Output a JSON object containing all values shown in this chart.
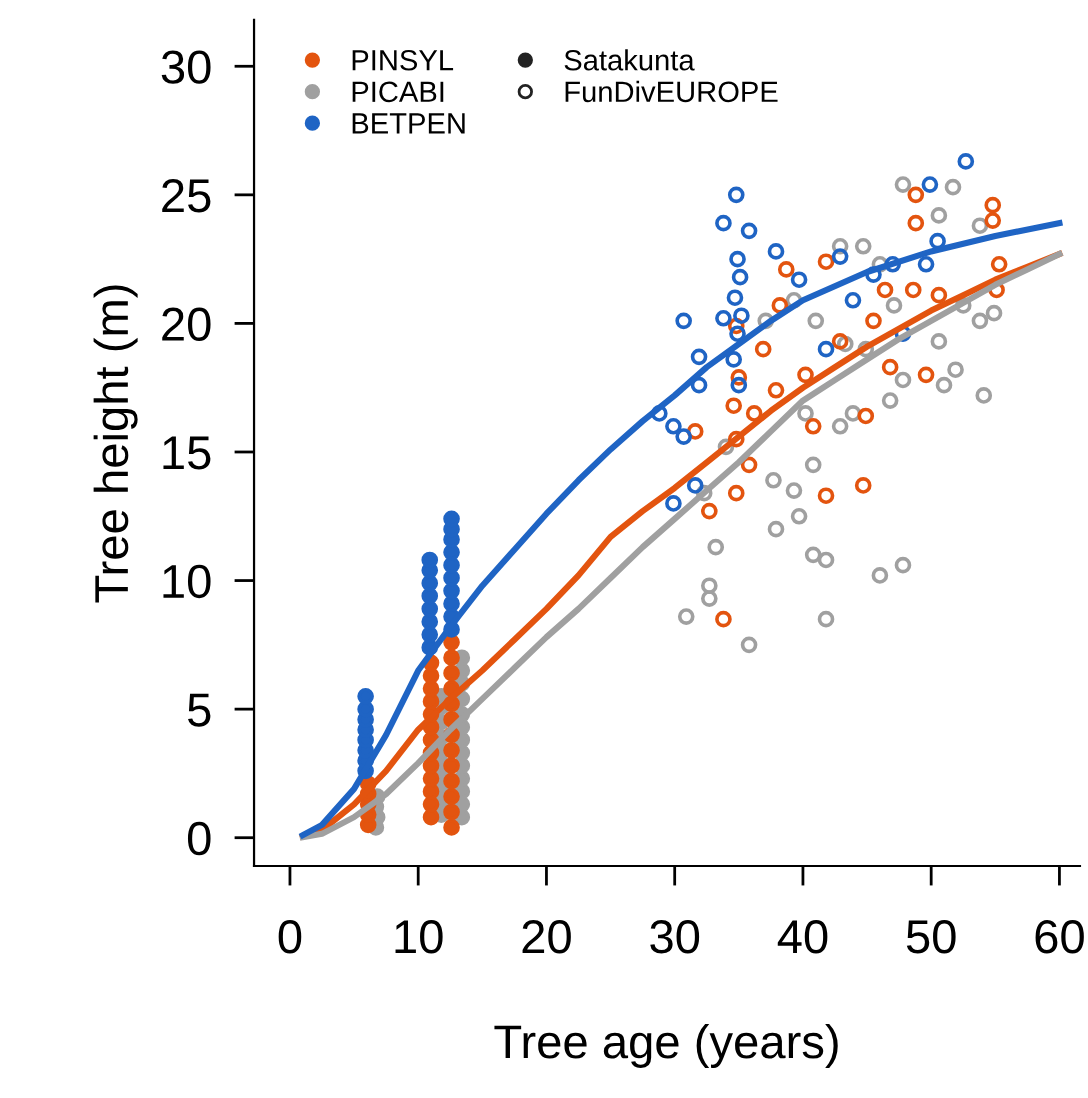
{
  "chart_data": {
    "type": "scatter",
    "xlabel": "Tree age (years)",
    "ylabel": "Tree height (m)",
    "xlim": [
      -2.8,
      61.6
    ],
    "ylim": [
      -1.1,
      31.8
    ],
    "xticks": [
      0,
      10,
      20,
      30,
      40,
      50,
      60
    ],
    "yticks": [
      0,
      5,
      10,
      15,
      20,
      25,
      30
    ],
    "grid": false,
    "legend": "top left",
    "annotations": [
      "Satakunta",
      "FunDivEUROPE"
    ],
    "series": [
      {
        "name": "PINSYL",
        "type": "line",
        "color": "#e3540f",
        "x": [
          1,
          2.5,
          5,
          7.5,
          10,
          12.5,
          15,
          17.5,
          20,
          22.5,
          25,
          27.5,
          30,
          32.5,
          35,
          37.5,
          40,
          42.5,
          45,
          47.5,
          50,
          52.5,
          55,
          57.5,
          60
        ],
        "values": [
          0.05,
          0.3,
          1.3,
          2.6,
          4.2,
          5.4,
          6.5,
          7.7,
          8.9,
          10.2,
          11.7,
          12.7,
          13.6,
          14.6,
          15.6,
          16.6,
          17.5,
          18.3,
          19.1,
          19.8,
          20.5,
          21.1,
          21.7,
          22.2,
          22.7
        ]
      },
      {
        "name": "PICABI",
        "type": "line",
        "color": "#a0a0a0",
        "x": [
          1,
          2.5,
          5,
          7.5,
          10,
          12.5,
          15,
          17.5,
          20,
          22.5,
          25,
          27.5,
          30,
          32.5,
          35,
          37.5,
          40,
          42.5,
          45,
          47.5,
          50,
          52.5,
          55,
          57.5,
          60
        ],
        "values": [
          0.02,
          0.15,
          0.8,
          1.7,
          2.9,
          4.2,
          5.4,
          6.6,
          7.8,
          8.9,
          10.1,
          11.3,
          12.4,
          13.5,
          14.6,
          15.8,
          17.0,
          17.8,
          18.6,
          19.4,
          20.1,
          20.8,
          21.5,
          22.1,
          22.7
        ]
      },
      {
        "name": "BETPEN",
        "type": "line",
        "color": "#1f64c4",
        "x": [
          1,
          2.5,
          5,
          7.5,
          10,
          12.5,
          15,
          17.5,
          20,
          22.5,
          25,
          27.5,
          30,
          32.5,
          35,
          37.5,
          40,
          45,
          50,
          55,
          60
        ],
        "values": [
          0.1,
          0.5,
          1.9,
          4.0,
          6.5,
          8.2,
          9.8,
          11.2,
          12.6,
          13.9,
          15.1,
          16.2,
          17.2,
          18.3,
          19.2,
          20.1,
          20.9,
          22.0,
          22.8,
          23.4,
          23.9
        ]
      },
      {
        "color": "#222222",
        "x": [
          6.7,
          6.8,
          6.7,
          6.8,
          11.8,
          11.8,
          11.8,
          11.8,
          11.8,
          11.8,
          11.8,
          11.8,
          11.8,
          11.8,
          13.4,
          13.4,
          13.4,
          13.4,
          13.4,
          13.4,
          13.4,
          13.4,
          13.4,
          13.4,
          13.4,
          13.4,
          13.4,
          6.1,
          6.1,
          6.1,
          6.1,
          6.1,
          11.0,
          11.0,
          11.0,
          11.0,
          11.0,
          11.0,
          11.0,
          11.0,
          11.0,
          11.0,
          11.0,
          11.0,
          11.0,
          12.6,
          12.6,
          12.6,
          12.6,
          12.6,
          12.6,
          12.6,
          12.6,
          12.6,
          12.6,
          12.6,
          12.6,
          12.6,
          5.9,
          5.9,
          5.9,
          5.9,
          5.9,
          5.9,
          5.9,
          5.9,
          10.9,
          10.9,
          10.9,
          10.9,
          10.9,
          10.9,
          10.9,
          10.9,
          12.6,
          12.6,
          12.6,
          12.6,
          12.6,
          12.6,
          12.6,
          12.6,
          12.6,
          12.6
        ],
        "values": [
          0.4,
          0.8,
          1.2,
          1.6,
          0.9,
          1.4,
          1.9,
          2.4,
          2.9,
          3.4,
          3.9,
          4.5,
          5.1,
          5.5,
          0.8,
          1.3,
          1.8,
          2.3,
          2.8,
          3.3,
          3.8,
          4.3,
          4.8,
          5.4,
          6.0,
          6.5,
          7.0,
          0.5,
          0.9,
          1.3,
          1.7,
          2.1,
          0.8,
          1.3,
          1.8,
          2.3,
          2.8,
          3.3,
          3.8,
          4.3,
          4.8,
          5.3,
          5.8,
          6.3,
          6.8,
          0.4,
          1.0,
          1.6,
          2.2,
          2.8,
          3.4,
          4.0,
          4.6,
          5.2,
          5.8,
          6.4,
          7.0,
          7.6,
          2.6,
          3.0,
          3.4,
          3.8,
          4.2,
          4.6,
          5.0,
          5.5,
          7.4,
          7.9,
          8.4,
          8.9,
          9.4,
          9.9,
          10.4,
          10.8,
          8.1,
          8.6,
          9.1,
          9.6,
          10.1,
          10.6,
          11.1,
          11.6,
          12.0,
          12.4
        ],
        "colors": [
          "#a0a0a0",
          "#a0a0a0",
          "#a0a0a0",
          "#a0a0a0",
          "#a0a0a0",
          "#a0a0a0",
          "#a0a0a0",
          "#a0a0a0",
          "#a0a0a0",
          "#a0a0a0",
          "#a0a0a0",
          "#a0a0a0",
          "#a0a0a0",
          "#a0a0a0",
          "#a0a0a0",
          "#a0a0a0",
          "#a0a0a0",
          "#a0a0a0",
          "#a0a0a0",
          "#a0a0a0",
          "#a0a0a0",
          "#a0a0a0",
          "#a0a0a0",
          "#a0a0a0",
          "#a0a0a0",
          "#a0a0a0",
          "#a0a0a0",
          "#e3540f",
          "#e3540f",
          "#e3540f",
          "#e3540f",
          "#e3540f",
          "#e3540f",
          "#e3540f",
          "#e3540f",
          "#e3540f",
          "#e3540f",
          "#e3540f",
          "#e3540f",
          "#e3540f",
          "#e3540f",
          "#e3540f",
          "#e3540f",
          "#e3540f",
          "#e3540f",
          "#e3540f",
          "#e3540f",
          "#e3540f",
          "#e3540f",
          "#e3540f",
          "#e3540f",
          "#e3540f",
          "#e3540f",
          "#e3540f",
          "#e3540f",
          "#e3540f",
          "#e3540f",
          "#e3540f",
          "#1f64c4",
          "#1f64c4",
          "#1f64c4",
          "#1f64c4",
          "#1f64c4",
          "#1f64c4",
          "#1f64c4",
          "#1f64c4",
          "#1f64c4",
          "#1f64c4",
          "#1f64c4",
          "#1f64c4",
          "#1f64c4",
          "#1f64c4",
          "#1f64c4",
          "#1f64c4",
          "#1f64c4",
          "#1f64c4",
          "#1f64c4",
          "#1f64c4",
          "#1f64c4",
          "#1f64c4",
          "#1f64c4",
          "#1f64c4",
          "#1f64c4",
          "#1f64c4"
        ]
      },
      {
        "color": "#222222",
        "x": [
          47.8,
          51.7,
          50.6,
          53.8,
          44.7,
          42.9,
          46.0,
          53.8,
          54.9,
          50.6,
          51.9,
          51.0,
          54.1,
          47.8,
          46.8,
          30.9,
          35.8,
          41.8,
          32.7,
          32.7,
          33.2,
          40.8,
          41.8,
          46.0,
          47.8,
          37.9,
          39.7,
          37.7,
          39.3,
          40.8,
          42.9,
          34.0,
          32.3,
          40.2,
          43.9,
          41.0,
          39.3,
          37.1,
          43.3,
          44.9,
          47.1,
          52.5,
          48.8,
          54.8,
          54.8,
          48.8,
          41.8,
          38.7,
          33.8,
          32.7,
          31.6,
          34.8,
          35.8,
          41.8,
          44.7,
          34.8,
          49.6,
          44.9,
          46.8,
          48.6,
          55.3,
          55.1,
          50.6,
          36.9,
          37.9,
          36.2,
          40.2,
          40.8,
          42.9,
          45.5,
          34.8,
          34.6,
          35.0,
          38.2,
          46.4,
          34.8,
          33.8,
          35.8,
          34.9,
          35.1,
          34.7,
          35.2,
          34.9,
          30.7,
          33.8,
          28.8,
          29.9,
          29.9,
          31.6,
          31.9,
          31.9,
          34.6,
          35.0,
          52.7,
          49.9,
          49.6,
          50.5,
          47.0,
          45.5,
          43.9,
          39.7,
          37.9,
          42.9,
          41.8,
          47.8,
          30.7
        ],
        "values": [
          25.4,
          25.3,
          24.2,
          23.8,
          23.0,
          23.0,
          22.3,
          20.1,
          20.4,
          19.3,
          18.2,
          17.6,
          17.2,
          17.8,
          17.0,
          8.6,
          7.5,
          8.5,
          9.8,
          9.3,
          11.3,
          11.0,
          10.8,
          10.2,
          10.6,
          12.0,
          12.5,
          13.9,
          13.5,
          14.5,
          16.0,
          15.2,
          13.4,
          16.5,
          16.5,
          20.1,
          20.9,
          20.1,
          19.2,
          19.0,
          20.7,
          20.7,
          25.0,
          24.6,
          24.0,
          23.9,
          22.4,
          22.1,
          8.5,
          12.7,
          15.8,
          15.5,
          14.5,
          13.3,
          13.7,
          13.4,
          18.0,
          16.4,
          18.3,
          21.3,
          22.3,
          21.3,
          21.1,
          19.0,
          17.4,
          16.5,
          18.0,
          16.0,
          19.3,
          20.1,
          19.9,
          16.8,
          17.9,
          20.7,
          21.3,
          25.0,
          23.9,
          23.6,
          22.5,
          21.8,
          21.0,
          20.3,
          19.6,
          20.1,
          20.2,
          16.5,
          13.0,
          16.0,
          13.7,
          18.7,
          17.6,
          18.6,
          17.6,
          26.3,
          25.4,
          22.3,
          23.2,
          22.3,
          21.9,
          20.9,
          21.7,
          22.8,
          22.6,
          19.0,
          19.6,
          15.6
        ],
        "colors": [
          "#a0a0a0",
          "#a0a0a0",
          "#a0a0a0",
          "#a0a0a0",
          "#a0a0a0",
          "#a0a0a0",
          "#a0a0a0",
          "#a0a0a0",
          "#a0a0a0",
          "#a0a0a0",
          "#a0a0a0",
          "#a0a0a0",
          "#a0a0a0",
          "#a0a0a0",
          "#a0a0a0",
          "#a0a0a0",
          "#a0a0a0",
          "#a0a0a0",
          "#a0a0a0",
          "#a0a0a0",
          "#a0a0a0",
          "#a0a0a0",
          "#a0a0a0",
          "#a0a0a0",
          "#a0a0a0",
          "#a0a0a0",
          "#a0a0a0",
          "#a0a0a0",
          "#a0a0a0",
          "#a0a0a0",
          "#a0a0a0",
          "#a0a0a0",
          "#a0a0a0",
          "#a0a0a0",
          "#a0a0a0",
          "#a0a0a0",
          "#a0a0a0",
          "#a0a0a0",
          "#a0a0a0",
          "#a0a0a0",
          "#a0a0a0",
          "#a0a0a0",
          "#e3540f",
          "#e3540f",
          "#e3540f",
          "#e3540f",
          "#e3540f",
          "#e3540f",
          "#e3540f",
          "#e3540f",
          "#e3540f",
          "#e3540f",
          "#e3540f",
          "#e3540f",
          "#e3540f",
          "#e3540f",
          "#e3540f",
          "#e3540f",
          "#e3540f",
          "#e3540f",
          "#e3540f",
          "#e3540f",
          "#e3540f",
          "#e3540f",
          "#e3540f",
          "#e3540f",
          "#e3540f",
          "#e3540f",
          "#e3540f",
          "#e3540f",
          "#e3540f",
          "#e3540f",
          "#e3540f",
          "#e3540f",
          "#e3540f",
          "#1f64c4",
          "#1f64c4",
          "#1f64c4",
          "#1f64c4",
          "#1f64c4",
          "#1f64c4",
          "#1f64c4",
          "#1f64c4",
          "#1f64c4",
          "#1f64c4",
          "#1f64c4",
          "#1f64c4",
          "#1f64c4",
          "#1f64c4",
          "#1f64c4",
          "#1f64c4",
          "#1f64c4",
          "#1f64c4",
          "#1f64c4",
          "#1f64c4",
          "#1f64c4",
          "#1f64c4",
          "#1f64c4",
          "#1f64c4",
          "#1f64c4",
          "#1f64c4",
          "#1f64c4",
          "#1f64c4",
          "#1f64c4",
          "#1f64c4",
          "#1f64c4"
        ]
      }
    ]
  }
}
